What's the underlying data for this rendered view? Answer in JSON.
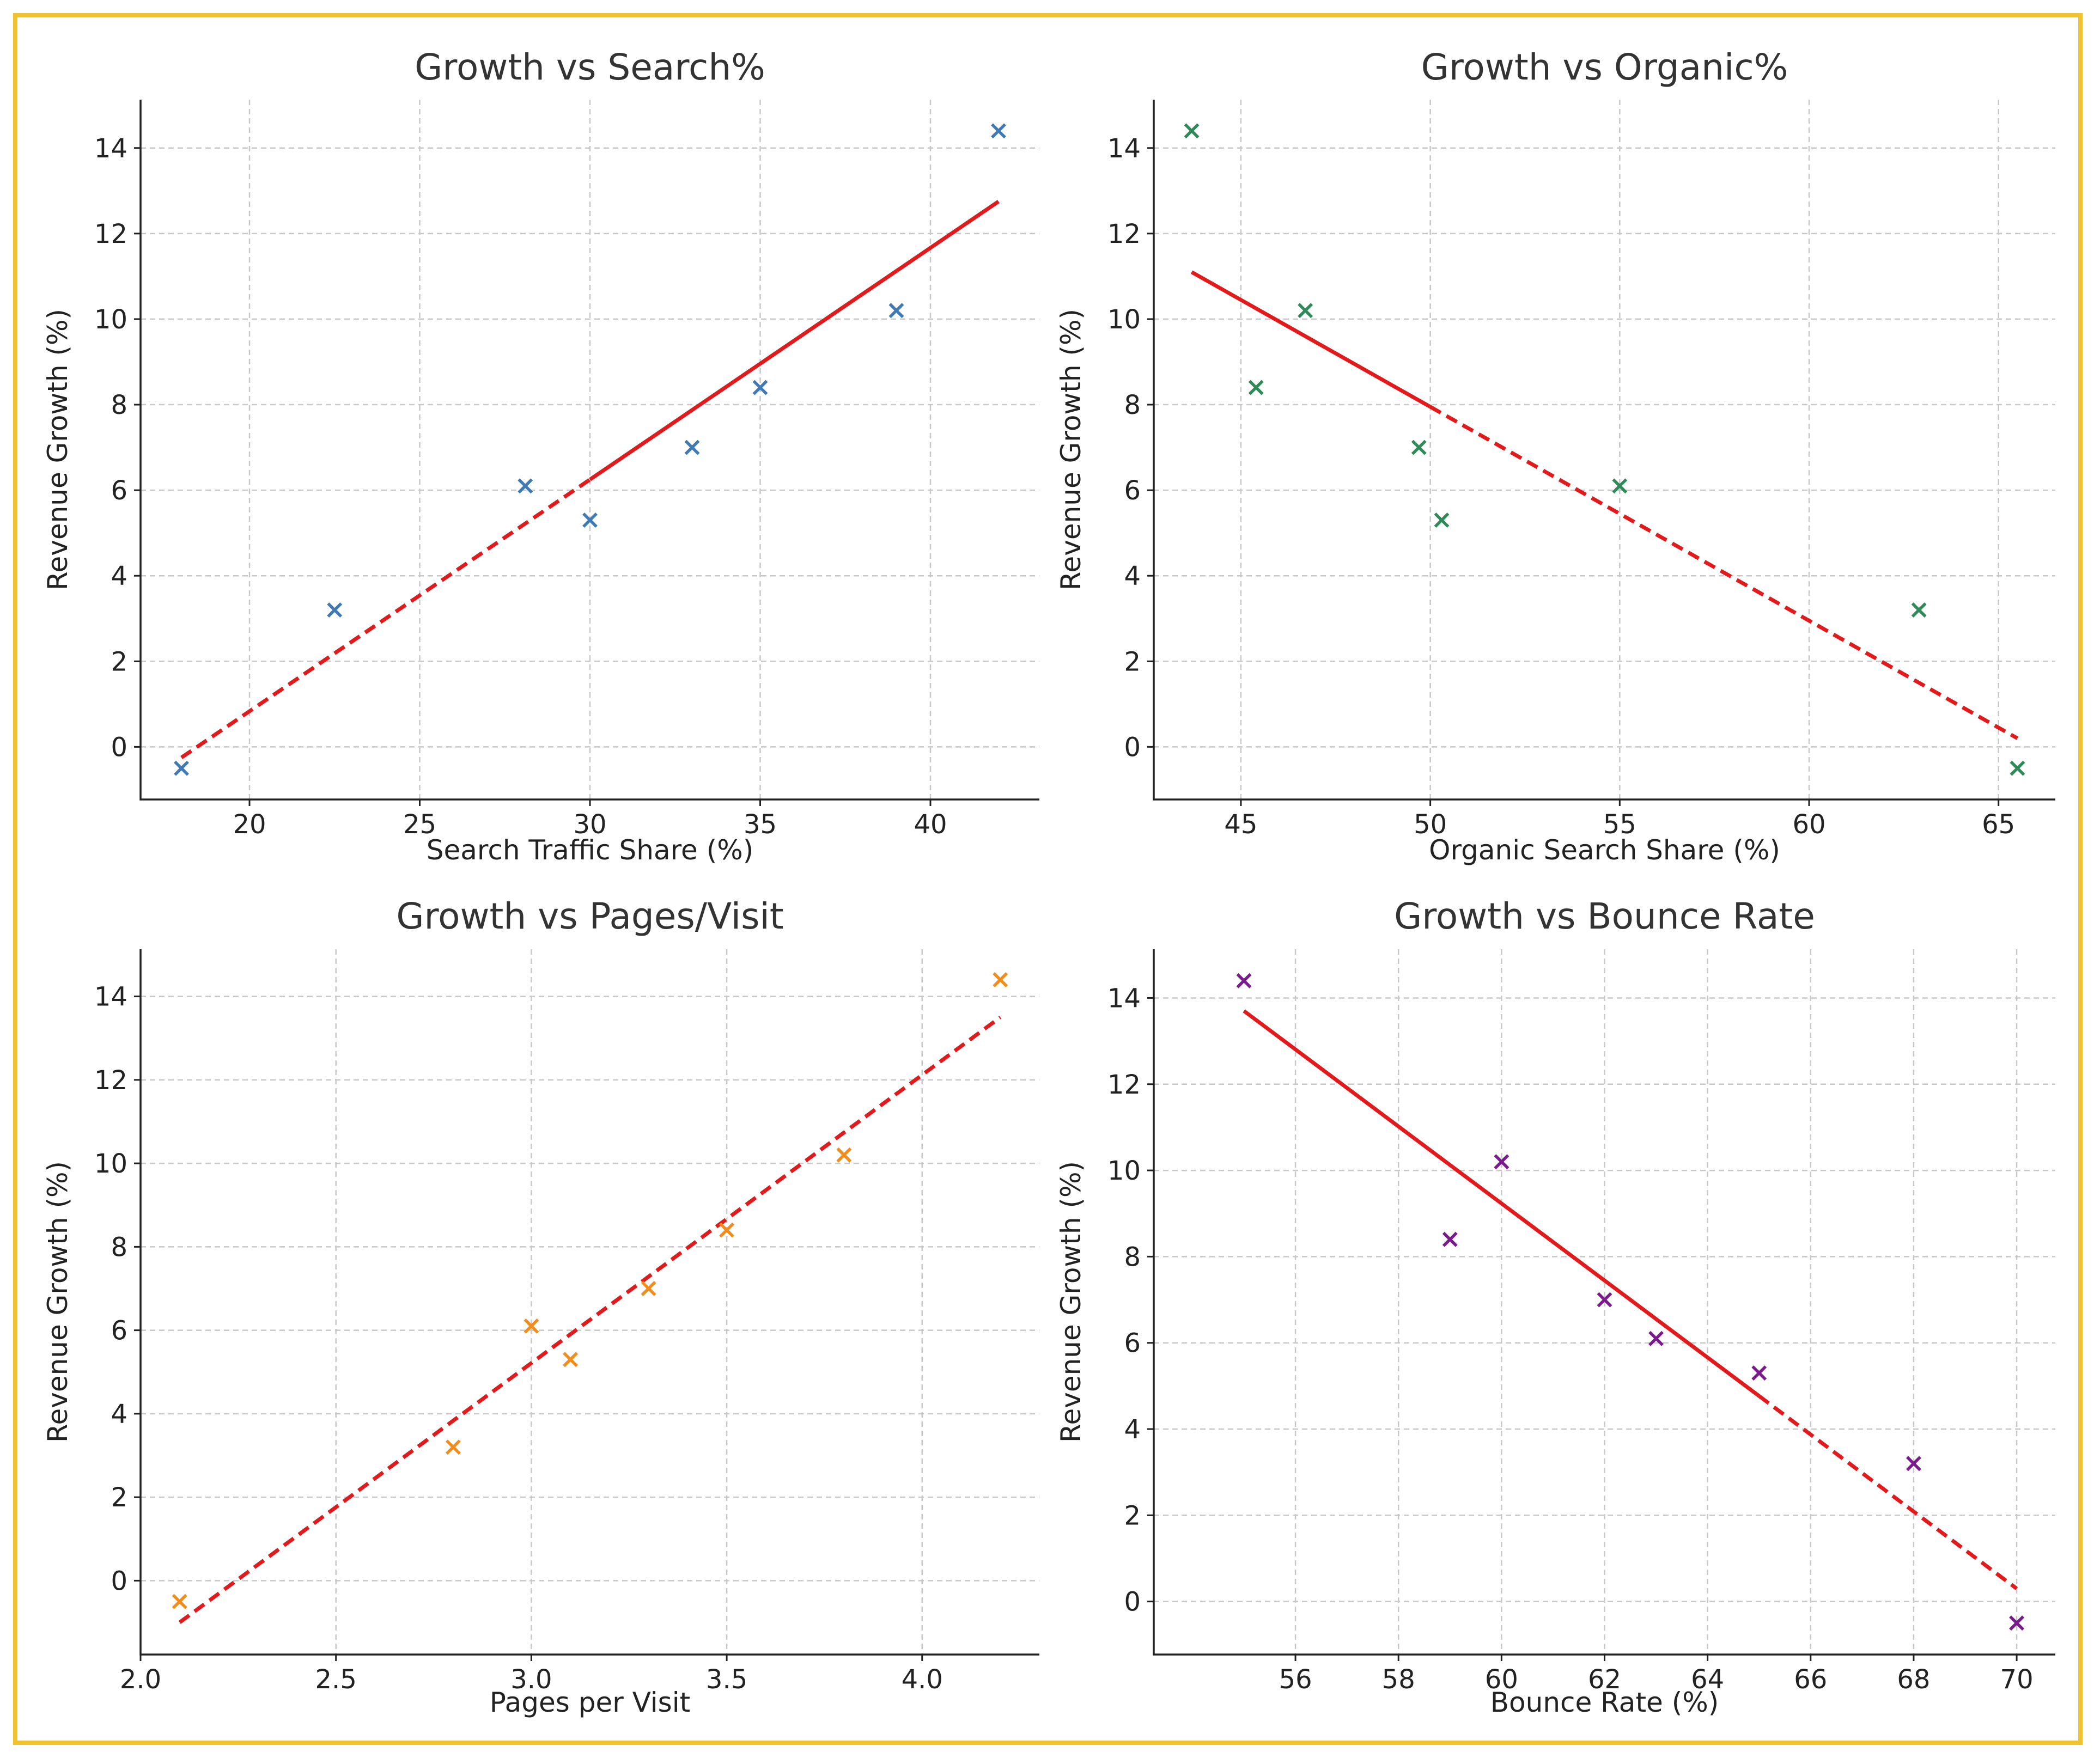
{
  "chart_data": [
    {
      "type": "scatter",
      "title": "Growth vs Search%",
      "xlabel": "Search Traffic Share (%)",
      "ylabel": "Revenue Growth (%)",
      "xlim": [
        16.8,
        43.2
      ],
      "ylim": [
        -1.23,
        15.13
      ],
      "xticks": [
        20,
        25,
        30,
        35,
        40
      ],
      "xtick_labels": [
        "20",
        "25",
        "30",
        "35",
        "40"
      ],
      "yticks": [
        0,
        2,
        4,
        6,
        8,
        10,
        12,
        14
      ],
      "ytick_labels": [
        "0",
        "2",
        "4",
        "6",
        "8",
        "10",
        "12",
        "14"
      ],
      "marker_color": "#3f7ab5",
      "points": [
        {
          "x": 18.0,
          "y": -0.5
        },
        {
          "x": 22.5,
          "y": 3.2
        },
        {
          "x": 28.1,
          "y": 6.1
        },
        {
          "x": 30.0,
          "y": 5.3
        },
        {
          "x": 33.0,
          "y": 7.0
        },
        {
          "x": 35.0,
          "y": 8.4
        },
        {
          "x": 39.0,
          "y": 10.2
        },
        {
          "x": 42.0,
          "y": 14.4
        }
      ],
      "trendline": {
        "x": [
          18.0,
          42.0
        ],
        "y": [
          -0.25,
          12.75
        ],
        "style_split_x": 30.0,
        "color": "#e31a1c"
      }
    },
    {
      "type": "scatter",
      "title": "Growth vs Organic%",
      "xlabel": "Organic Search Share (%)",
      "ylabel": "Revenue Growth (%)",
      "xlim": [
        42.7,
        66.5
      ],
      "ylim": [
        -1.23,
        15.13
      ],
      "xticks": [
        45,
        50,
        55,
        60,
        65
      ],
      "xtick_labels": [
        "45",
        "50",
        "55",
        "60",
        "65"
      ],
      "yticks": [
        0,
        2,
        4,
        6,
        8,
        10,
        12,
        14
      ],
      "ytick_labels": [
        "0",
        "2",
        "4",
        "6",
        "8",
        "10",
        "12",
        "14"
      ],
      "marker_color": "#2e8b57",
      "points": [
        {
          "x": 43.7,
          "y": 14.4
        },
        {
          "x": 45.4,
          "y": 8.4
        },
        {
          "x": 46.7,
          "y": 10.2
        },
        {
          "x": 49.7,
          "y": 7.0
        },
        {
          "x": 50.3,
          "y": 5.3
        },
        {
          "x": 55.0,
          "y": 6.1
        },
        {
          "x": 62.9,
          "y": 3.2
        },
        {
          "x": 65.5,
          "y": -0.5
        }
      ],
      "trendline": {
        "x": [
          43.7,
          65.5
        ],
        "y": [
          11.1,
          0.2
        ],
        "style_split_x": 50.0,
        "color": "#e31a1c"
      }
    },
    {
      "type": "scatter",
      "title": "Growth vs Pages/Visit",
      "xlabel": "Pages per Visit",
      "ylabel": "Revenue Growth (%)",
      "xlim": [
        2.0,
        4.3
      ],
      "ylim": [
        -1.77,
        15.13
      ],
      "xticks": [
        2.0,
        2.5,
        3.0,
        3.5,
        4.0
      ],
      "xtick_labels": [
        "2.0",
        "2.5",
        "3.0",
        "3.5",
        "4.0"
      ],
      "yticks": [
        0,
        2,
        4,
        6,
        8,
        10,
        12,
        14
      ],
      "ytick_labels": [
        "0",
        "2",
        "4",
        "6",
        "8",
        "10",
        "12",
        "14"
      ],
      "marker_color": "#f28c1c",
      "points": [
        {
          "x": 2.1,
          "y": -0.5
        },
        {
          "x": 2.8,
          "y": 3.2
        },
        {
          "x": 3.0,
          "y": 6.1
        },
        {
          "x": 3.1,
          "y": 5.3
        },
        {
          "x": 3.3,
          "y": 7.0
        },
        {
          "x": 3.5,
          "y": 8.4
        },
        {
          "x": 3.8,
          "y": 10.2
        },
        {
          "x": 4.2,
          "y": 14.4
        }
      ],
      "trendline": {
        "x": [
          2.1,
          4.2
        ],
        "y": [
          -1.0,
          13.5
        ],
        "style_split_x": null,
        "color": "#e31a1c"
      }
    },
    {
      "type": "scatter",
      "title": "Growth vs Bounce Rate",
      "xlabel": "Bounce Rate (%)",
      "ylabel": "Revenue Growth (%)",
      "xlim": [
        53.25,
        70.75
      ],
      "ylim": [
        -1.23,
        15.13
      ],
      "xticks": [
        56,
        58,
        60,
        62,
        64,
        66,
        68,
        70
      ],
      "xtick_labels": [
        "56",
        "58",
        "60",
        "62",
        "64",
        "66",
        "68",
        "70"
      ],
      "yticks": [
        0,
        2,
        4,
        6,
        8,
        10,
        12,
        14
      ],
      "ytick_labels": [
        "0",
        "2",
        "4",
        "6",
        "8",
        "10",
        "12",
        "14"
      ],
      "marker_color": "#7a1a8c",
      "points": [
        {
          "x": 55.0,
          "y": 14.4
        },
        {
          "x": 59.0,
          "y": 8.4
        },
        {
          "x": 60.0,
          "y": 10.2
        },
        {
          "x": 62.0,
          "y": 7.0
        },
        {
          "x": 63.0,
          "y": 6.1
        },
        {
          "x": 65.0,
          "y": 5.3
        },
        {
          "x": 68.0,
          "y": 3.2
        },
        {
          "x": 70.0,
          "y": -0.5
        }
      ],
      "trendline": {
        "x": [
          55.0,
          70.0
        ],
        "y": [
          13.7,
          0.3
        ],
        "style_split_x": 65.0,
        "color": "#e31a1c"
      }
    }
  ]
}
